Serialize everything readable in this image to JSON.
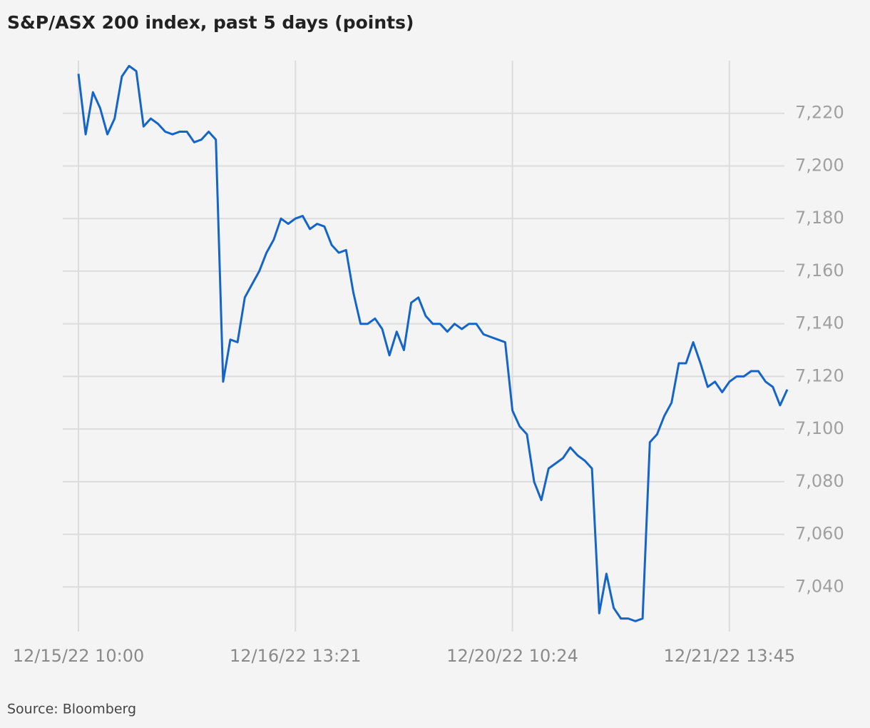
{
  "chart_data": {
    "type": "line",
    "title": "S&P/ASX 200 index, past 5 days (points)",
    "source": "Source: Bloomberg",
    "categories": [
      "12/15/22 10:00",
      null,
      null,
      null,
      null,
      null,
      null,
      null,
      null,
      null,
      null,
      null,
      null,
      null,
      null,
      null,
      null,
      null,
      null,
      null,
      null,
      null,
      null,
      null,
      null,
      null,
      null,
      null,
      null,
      null,
      "12/16/22 13:21",
      null,
      null,
      null,
      null,
      null,
      null,
      null,
      null,
      null,
      null,
      null,
      null,
      null,
      null,
      null,
      null,
      null,
      null,
      null,
      null,
      null,
      null,
      null,
      null,
      null,
      null,
      null,
      null,
      null,
      "12/20/22 10:24",
      null,
      null,
      null,
      null,
      null,
      null,
      null,
      null,
      null,
      null,
      null,
      null,
      null,
      null,
      null,
      null,
      null,
      null,
      null,
      null,
      null,
      null,
      null,
      null,
      null,
      null,
      null,
      null,
      null,
      "12/21/22 13:45",
      null,
      null,
      null,
      null,
      null,
      null,
      null,
      null
    ],
    "series": [
      {
        "name": "S&P/ASX 200",
        "color": "#1565c8",
        "values": [
          7235,
          7212,
          7228,
          7222,
          7212,
          7218,
          7234,
          7238,
          7236,
          7215,
          7218,
          7216,
          7213,
          7212,
          7213,
          7213,
          7209,
          7210,
          7213,
          7210,
          7118,
          7134,
          7133,
          7150,
          7155,
          7160,
          7167,
          7172,
          7180,
          7178,
          7180,
          7181,
          7176,
          7178,
          7177,
          7170,
          7167,
          7168,
          7152,
          7140,
          7140,
          7142,
          7138,
          7128,
          7137,
          7130,
          7148,
          7150,
          7143,
          7140,
          7140,
          7137,
          7140,
          7138,
          7140,
          7140,
          7136,
          7135,
          7134,
          7133,
          7107,
          7101,
          7098,
          7080,
          7073,
          7085,
          7087,
          7089,
          7093,
          7090,
          7088,
          7085,
          7030,
          7045,
          7032,
          7028,
          7028,
          7027,
          7028,
          7095,
          7098,
          7105,
          7110,
          7125,
          7125,
          7133,
          7125,
          7116,
          7118,
          7114,
          7118,
          7120,
          7120,
          7122,
          7122,
          7118,
          7116,
          7109,
          7115
        ]
      }
    ],
    "ylim": [
      7023,
      7240
    ],
    "yticks": [
      {
        "value": 7040,
        "label": "7,040"
      },
      {
        "value": 7060,
        "label": "7,060"
      },
      {
        "value": 7080,
        "label": "7,080"
      },
      {
        "value": 7100,
        "label": "7,100"
      },
      {
        "value": 7120,
        "label": "7,120"
      },
      {
        "value": 7140,
        "label": "7,140"
      },
      {
        "value": 7160,
        "label": "7,160"
      },
      {
        "value": 7180,
        "label": "7,180"
      },
      {
        "value": 7200,
        "label": "7,200"
      },
      {
        "value": 7220,
        "label": "7,220"
      }
    ],
    "grid": true
  }
}
